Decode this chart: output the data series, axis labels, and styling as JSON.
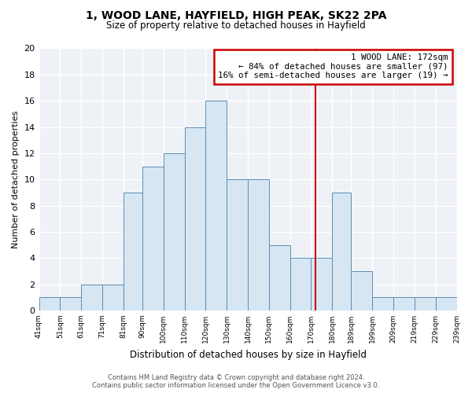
{
  "title": "1, WOOD LANE, HAYFIELD, HIGH PEAK, SK22 2PA",
  "subtitle": "Size of property relative to detached houses in Hayfield",
  "xlabel": "Distribution of detached houses by size in Hayfield",
  "ylabel": "Number of detached properties",
  "bin_edges": [
    41,
    51,
    61,
    71,
    81,
    90,
    100,
    110,
    120,
    130,
    140,
    150,
    160,
    170,
    180,
    189,
    199,
    209,
    219,
    229,
    239
  ],
  "counts": [
    1,
    1,
    2,
    2,
    9,
    11,
    12,
    14,
    16,
    10,
    10,
    5,
    4,
    4,
    9,
    3,
    1,
    1,
    1,
    1
  ],
  "bar_color": "#d6e6f2",
  "bar_edge_color": "#5b8db8",
  "ref_line_x": 172,
  "ref_line_color": "#cc0000",
  "annotation_title": "1 WOOD LANE: 172sqm",
  "annotation_line1": "← 84% of detached houses are smaller (97)",
  "annotation_line2": "16% of semi-detached houses are larger (19) →",
  "annotation_box_color": "#ffffff",
  "annotation_box_edge": "#cc0000",
  "ylim": [
    0,
    20
  ],
  "yticks": [
    0,
    2,
    4,
    6,
    8,
    10,
    12,
    14,
    16,
    18,
    20
  ],
  "tick_labels": [
    "41sqm",
    "51sqm",
    "61sqm",
    "71sqm",
    "81sqm",
    "90sqm",
    "100sqm",
    "110sqm",
    "120sqm",
    "130sqm",
    "140sqm",
    "150sqm",
    "160sqm",
    "170sqm",
    "180sqm",
    "189sqm",
    "199sqm",
    "209sqm",
    "219sqm",
    "229sqm",
    "239sqm"
  ],
  "footer_line1": "Contains HM Land Registry data © Crown copyright and database right 2024.",
  "footer_line2": "Contains public sector information licensed under the Open Government Licence v3.0.",
  "bg_color": "#ffffff",
  "plot_bg_color": "#eef2f7",
  "grid_color": "#ffffff",
  "title_fontsize": 10,
  "subtitle_fontsize": 8.5,
  "ylabel_fontsize": 8,
  "xlabel_fontsize": 8.5,
  "footer_fontsize": 6,
  "annotation_fontsize": 7.8
}
